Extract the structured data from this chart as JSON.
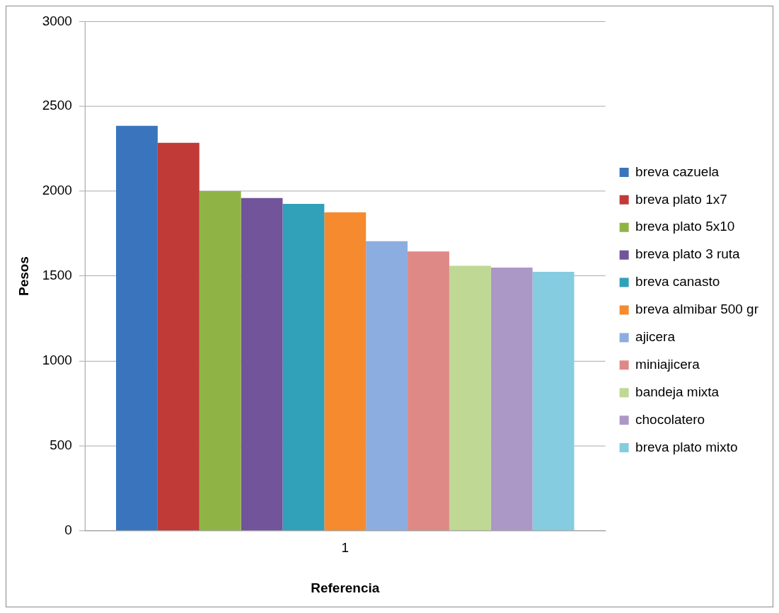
{
  "chart_data": {
    "type": "bar",
    "xlabel": "Referencia",
    "ylabel": "Pesos",
    "categories": [
      "1"
    ],
    "series": [
      {
        "name": "breva cazuela",
        "color": "#3a74bd",
        "values": [
          2385
        ]
      },
      {
        "name": "breva plato 1x7",
        "color": "#c03a37",
        "values": [
          2285
        ]
      },
      {
        "name": "breva plato 5x10",
        "color": "#8fb445",
        "values": [
          2000
        ]
      },
      {
        "name": "breva plato 3 ruta",
        "color": "#71549a",
        "values": [
          1960
        ]
      },
      {
        "name": "breva canasto",
        "color": "#31a0b9",
        "values": [
          1925
        ]
      },
      {
        "name": "breva almibar 500 gr",
        "color": "#f58a2e",
        "values": [
          1875
        ]
      },
      {
        "name": "ajicera",
        "color": "#8caddf",
        "values": [
          1705
        ]
      },
      {
        "name": "miniajicera",
        "color": "#df8987",
        "values": [
          1645
        ]
      },
      {
        "name": "bandeja mixta",
        "color": "#bfd894",
        "values": [
          1560
        ]
      },
      {
        "name": "chocolatero",
        "color": "#ab98c7",
        "values": [
          1550
        ]
      },
      {
        "name": "breva plato mixto",
        "color": "#86cce0",
        "values": [
          1525
        ]
      }
    ],
    "ylim": [
      0,
      3000
    ],
    "yticks": [
      0,
      500,
      1000,
      1500,
      2000,
      2500,
      3000
    ],
    "grid": "y",
    "legend": "right"
  }
}
